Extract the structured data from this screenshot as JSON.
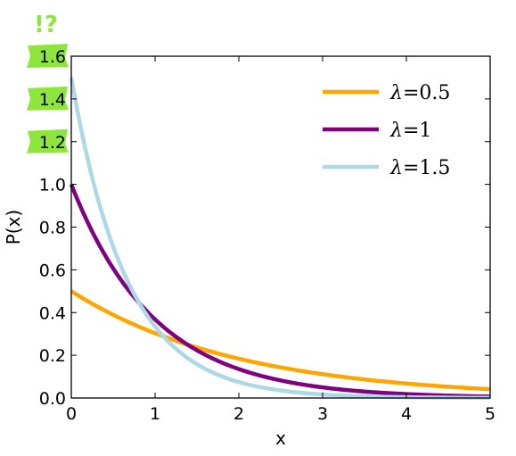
{
  "chart_data": {
    "type": "line",
    "title": "",
    "xlabel": "x",
    "ylabel": "P(x)",
    "xlim": [
      0,
      5
    ],
    "ylim": [
      0,
      1.6
    ],
    "xticks": [
      "0",
      "1",
      "2",
      "3",
      "4",
      "5"
    ],
    "yticks": [
      "0.0",
      "0.2",
      "0.4",
      "0.6",
      "0.8",
      "1.0",
      "1.2",
      "1.4",
      "1.6"
    ],
    "grid": false,
    "legend_position": "top-right",
    "series": [
      {
        "name": "λ = 0.5",
        "label_symbol": "λ",
        "label_value": "=0.5",
        "lambda": 0.5,
        "color": "#ffa500",
        "x": [
          0,
          0.5,
          1,
          1.5,
          2,
          2.5,
          3,
          3.5,
          4,
          4.5,
          5
        ],
        "y": [
          0.5,
          0.389,
          0.303,
          0.236,
          0.184,
          0.143,
          0.112,
          0.087,
          0.068,
          0.053,
          0.041
        ]
      },
      {
        "name": "λ = 1",
        "label_symbol": "λ",
        "label_value": "=1",
        "lambda": 1,
        "color": "#800080",
        "x": [
          0,
          0.5,
          1,
          1.5,
          2,
          2.5,
          3,
          3.5,
          4,
          4.5,
          5
        ],
        "y": [
          1.0,
          0.607,
          0.368,
          0.223,
          0.135,
          0.082,
          0.05,
          0.03,
          0.018,
          0.011,
          0.007
        ]
      },
      {
        "name": "λ = 1.5",
        "label_symbol": "λ",
        "label_value": "=1.5",
        "lambda": 1.5,
        "color": "#add8e6",
        "x": [
          0,
          0.5,
          1,
          1.5,
          2,
          2.5,
          3,
          3.5,
          4,
          4.5,
          5
        ],
        "y": [
          1.5,
          0.708,
          0.335,
          0.158,
          0.075,
          0.035,
          0.017,
          0.008,
          0.004,
          0.002,
          0.001
        ]
      }
    ]
  },
  "annotation": {
    "mark": "!?",
    "highlight_color": "#8ee63d",
    "highlighted_ticks": [
      "1.6",
      "1.4",
      "1.2"
    ]
  }
}
